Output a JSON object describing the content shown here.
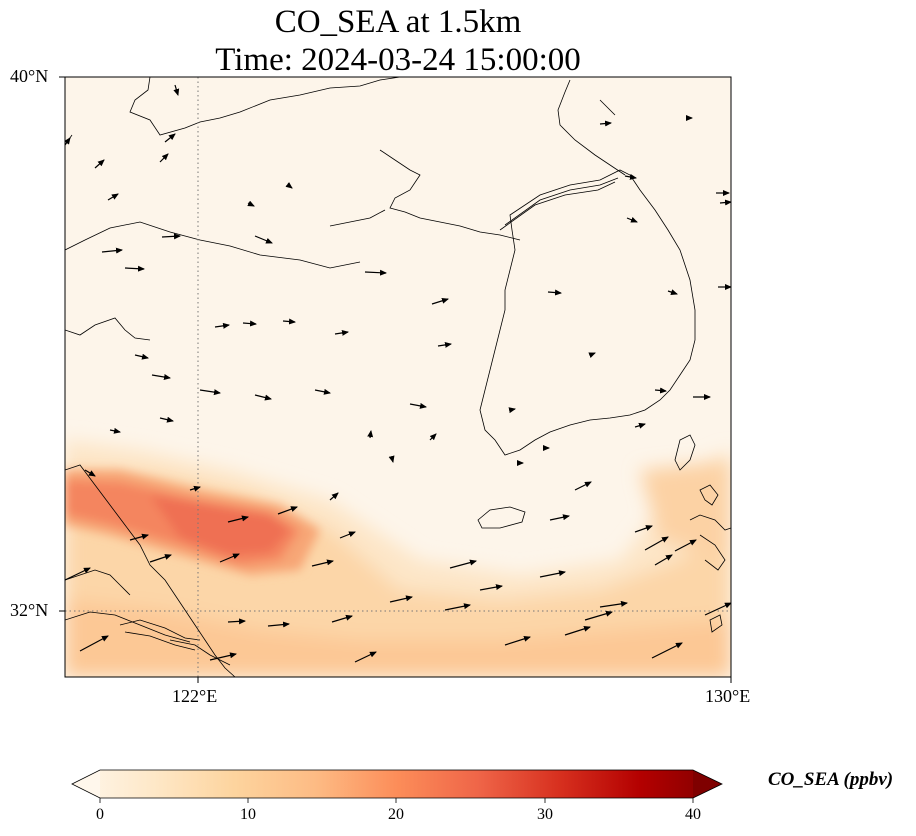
{
  "title": {
    "line1": "CO_SEA at 1.5km",
    "line2": "Time: 2024-03-24 15:00:00"
  },
  "map": {
    "lat_labels": [
      "40°N",
      "32°N"
    ],
    "lon_labels": [
      "122°E",
      "130°E"
    ],
    "lat_range": [
      31,
      40
    ],
    "lon_range": [
      120,
      130
    ],
    "gridlines": {
      "lon": 122,
      "lat": 32,
      "style": "dotted"
    },
    "field_colors": {
      "background": "#fdf5ea",
      "low": "#fde4c4",
      "mid": "#fcc592",
      "high": "#f4855e",
      "peak": "#ef7052"
    },
    "wind_arrow_count": 80
  },
  "colorbar": {
    "label": "CO_SEA (ppbv)",
    "ticks": [
      "0",
      "10",
      "20",
      "30",
      "40"
    ],
    "min": 0,
    "max": 40,
    "extend": "both",
    "colormap": "OrRd",
    "colors": [
      "#fff7ec",
      "#fee8c8",
      "#fdd49e",
      "#fdbb84",
      "#fc8d59",
      "#ef6548",
      "#d7301f",
      "#b30000",
      "#7f0000"
    ]
  }
}
